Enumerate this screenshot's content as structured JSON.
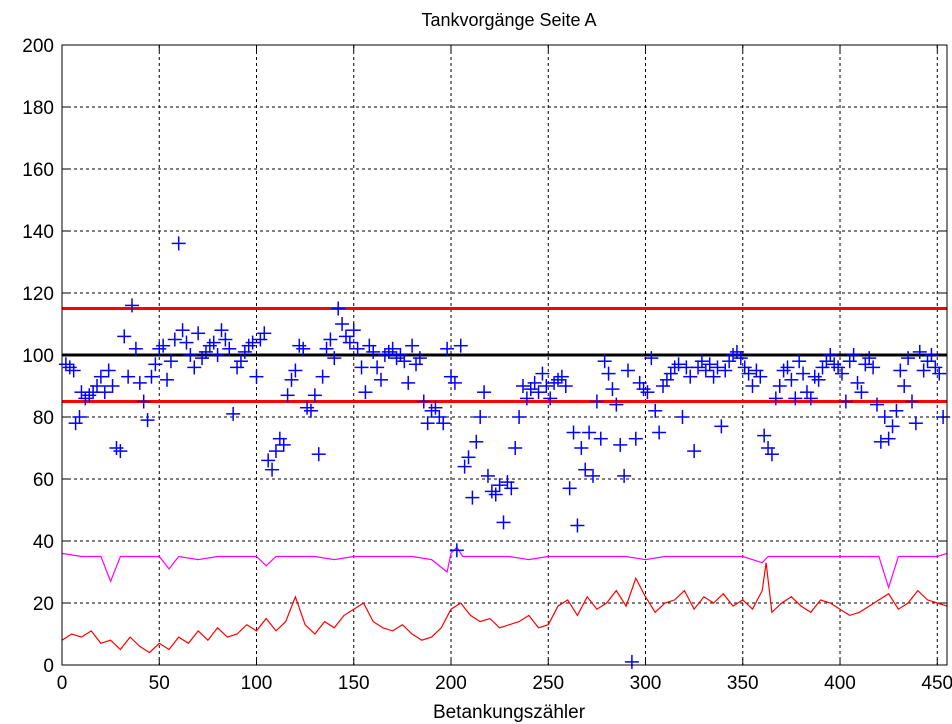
{
  "chart_data": {
    "type": "scatter",
    "title": "Tankvorgänge Seite A",
    "xlabel": "Betankungszähler",
    "ylabel": "",
    "xlim": [
      0,
      455
    ],
    "ylim": [
      0,
      200
    ],
    "xticks": [
      0,
      50,
      100,
      150,
      200,
      250,
      300,
      350,
      400,
      450
    ],
    "yticks": [
      0,
      20,
      40,
      60,
      80,
      100,
      120,
      140,
      160,
      180,
      200
    ],
    "grid": true,
    "colors": {
      "scatter": "#0000ff",
      "reference": "#000000",
      "limits": "#ff0000",
      "magenta_series": "#ff00ff",
      "red_series": "#ff0000"
    },
    "reference_lines": [
      {
        "y": 115,
        "color": "#ff0000"
      },
      {
        "y": 100,
        "color": "#000000"
      },
      {
        "y": 85,
        "color": "#ff0000"
      }
    ],
    "scatter_points": [
      [
        2,
        97
      ],
      [
        4,
        96
      ],
      [
        6,
        95
      ],
      [
        7,
        78
      ],
      [
        9,
        80
      ],
      [
        10,
        88
      ],
      [
        12,
        86
      ],
      [
        14,
        87
      ],
      [
        16,
        88
      ],
      [
        18,
        90
      ],
      [
        20,
        93
      ],
      [
        22,
        88
      ],
      [
        24,
        95
      ],
      [
        26,
        90
      ],
      [
        28,
        70
      ],
      [
        30,
        69
      ],
      [
        32,
        106
      ],
      [
        34,
        93
      ],
      [
        36,
        116
      ],
      [
        38,
        102
      ],
      [
        40,
        91
      ],
      [
        42,
        85
      ],
      [
        44,
        79
      ],
      [
        46,
        93
      ],
      [
        48,
        97
      ],
      [
        50,
        102
      ],
      [
        52,
        103
      ],
      [
        54,
        92
      ],
      [
        56,
        98
      ],
      [
        58,
        105
      ],
      [
        60,
        136
      ],
      [
        62,
        108
      ],
      [
        64,
        104
      ],
      [
        66,
        100
      ],
      [
        68,
        96
      ],
      [
        70,
        107
      ],
      [
        72,
        99
      ],
      [
        74,
        101
      ],
      [
        76,
        103
      ],
      [
        78,
        104
      ],
      [
        80,
        100
      ],
      [
        82,
        108
      ],
      [
        84,
        105
      ],
      [
        86,
        102
      ],
      [
        88,
        81
      ],
      [
        90,
        96
      ],
      [
        92,
        98
      ],
      [
        94,
        101
      ],
      [
        96,
        103
      ],
      [
        98,
        104
      ],
      [
        100,
        93
      ],
      [
        102,
        105
      ],
      [
        104,
        107
      ],
      [
        106,
        66
      ],
      [
        108,
        63
      ],
      [
        110,
        69
      ],
      [
        112,
        73
      ],
      [
        114,
        71
      ],
      [
        116,
        87
      ],
      [
        118,
        92
      ],
      [
        120,
        95
      ],
      [
        122,
        103
      ],
      [
        124,
        102
      ],
      [
        126,
        83
      ],
      [
        128,
        82
      ],
      [
        130,
        87
      ],
      [
        132,
        68
      ],
      [
        134,
        93
      ],
      [
        136,
        102
      ],
      [
        138,
        105
      ],
      [
        140,
        99
      ],
      [
        142,
        115
      ],
      [
        144,
        110
      ],
      [
        146,
        106
      ],
      [
        148,
        104
      ],
      [
        150,
        108
      ],
      [
        152,
        102
      ],
      [
        154,
        96
      ],
      [
        156,
        88
      ],
      [
        158,
        103
      ],
      [
        160,
        101
      ],
      [
        162,
        96
      ],
      [
        164,
        92
      ],
      [
        166,
        100
      ],
      [
        168,
        101
      ],
      [
        170,
        102
      ],
      [
        172,
        99
      ],
      [
        174,
        100
      ],
      [
        176,
        98
      ],
      [
        178,
        91
      ],
      [
        180,
        103
      ],
      [
        182,
        97
      ],
      [
        184,
        99
      ],
      [
        186,
        85
      ],
      [
        188,
        78
      ],
      [
        190,
        82
      ],
      [
        192,
        83
      ],
      [
        194,
        80
      ],
      [
        196,
        78
      ],
      [
        198,
        102
      ],
      [
        200,
        93
      ],
      [
        202,
        91
      ],
      [
        203,
        37
      ],
      [
        205,
        103
      ],
      [
        207,
        64
      ],
      [
        209,
        67
      ],
      [
        211,
        54
      ],
      [
        213,
        72
      ],
      [
        215,
        80
      ],
      [
        217,
        88
      ],
      [
        219,
        61
      ],
      [
        221,
        56
      ],
      [
        223,
        55
      ],
      [
        225,
        58
      ],
      [
        227,
        46
      ],
      [
        229,
        59
      ],
      [
        231,
        57
      ],
      [
        233,
        70
      ],
      [
        235,
        80
      ],
      [
        237,
        90
      ],
      [
        239,
        86
      ],
      [
        241,
        89
      ],
      [
        243,
        91
      ],
      [
        245,
        88
      ],
      [
        247,
        94
      ],
      [
        249,
        90
      ],
      [
        251,
        86
      ],
      [
        253,
        91
      ],
      [
        255,
        92
      ],
      [
        257,
        93
      ],
      [
        259,
        90
      ],
      [
        261,
        57
      ],
      [
        263,
        75
      ],
      [
        265,
        45
      ],
      [
        267,
        70
      ],
      [
        269,
        63
      ],
      [
        271,
        75
      ],
      [
        273,
        61
      ],
      [
        275,
        85
      ],
      [
        277,
        73
      ],
      [
        279,
        98
      ],
      [
        281,
        94
      ],
      [
        283,
        89
      ],
      [
        285,
        84
      ],
      [
        287,
        71
      ],
      [
        289,
        61
      ],
      [
        291,
        95
      ],
      [
        293,
        1
      ],
      [
        295,
        73
      ],
      [
        297,
        91
      ],
      [
        299,
        89
      ],
      [
        301,
        88
      ],
      [
        303,
        99
      ],
      [
        305,
        82
      ],
      [
        307,
        75
      ],
      [
        309,
        90
      ],
      [
        311,
        92
      ],
      [
        313,
        94
      ],
      [
        315,
        96
      ],
      [
        317,
        97
      ],
      [
        319,
        80
      ],
      [
        321,
        96
      ],
      [
        323,
        93
      ],
      [
        325,
        69
      ],
      [
        327,
        96
      ],
      [
        329,
        98
      ],
      [
        331,
        95
      ],
      [
        333,
        97
      ],
      [
        335,
        93
      ],
      [
        337,
        96
      ],
      [
        339,
        77
      ],
      [
        341,
        95
      ],
      [
        343,
        98
      ],
      [
        345,
        100
      ],
      [
        347,
        101
      ],
      [
        349,
        99
      ],
      [
        351,
        96
      ],
      [
        353,
        94
      ],
      [
        355,
        90
      ],
      [
        357,
        95
      ],
      [
        359,
        93
      ],
      [
        361,
        74
      ],
      [
        363,
        70
      ],
      [
        365,
        68
      ],
      [
        367,
        86
      ],
      [
        369,
        90
      ],
      [
        371,
        95
      ],
      [
        373,
        96
      ],
      [
        375,
        92
      ],
      [
        377,
        86
      ],
      [
        379,
        98
      ],
      [
        381,
        94
      ],
      [
        383,
        88
      ],
      [
        385,
        86
      ],
      [
        387,
        93
      ],
      [
        389,
        92
      ],
      [
        391,
        96
      ],
      [
        393,
        98
      ],
      [
        395,
        100
      ],
      [
        397,
        97
      ],
      [
        399,
        96
      ],
      [
        401,
        94
      ],
      [
        403,
        85
      ],
      [
        405,
        98
      ],
      [
        407,
        100
      ],
      [
        409,
        91
      ],
      [
        411,
        88
      ],
      [
        413,
        97
      ],
      [
        415,
        99
      ],
      [
        417,
        96
      ],
      [
        419,
        84
      ],
      [
        421,
        72
      ],
      [
        423,
        80
      ],
      [
        425,
        73
      ],
      [
        427,
        77
      ],
      [
        429,
        82
      ],
      [
        431,
        95
      ],
      [
        433,
        90
      ],
      [
        435,
        99
      ],
      [
        437,
        85
      ],
      [
        439,
        78
      ],
      [
        441,
        101
      ],
      [
        443,
        95
      ],
      [
        445,
        98
      ],
      [
        447,
        100
      ],
      [
        449,
        96
      ],
      [
        451,
        94
      ],
      [
        453,
        80
      ]
    ],
    "magenta_series": [
      [
        0,
        36
      ],
      [
        10,
        35
      ],
      [
        20,
        35
      ],
      [
        25,
        27
      ],
      [
        30,
        35
      ],
      [
        40,
        35
      ],
      [
        50,
        35
      ],
      [
        55,
        31
      ],
      [
        60,
        35
      ],
      [
        70,
        34
      ],
      [
        80,
        35
      ],
      [
        90,
        35
      ],
      [
        100,
        35
      ],
      [
        105,
        32
      ],
      [
        110,
        35
      ],
      [
        120,
        35
      ],
      [
        130,
        35
      ],
      [
        140,
        34
      ],
      [
        150,
        35
      ],
      [
        160,
        35
      ],
      [
        170,
        35
      ],
      [
        180,
        35
      ],
      [
        190,
        34
      ],
      [
        198,
        30
      ],
      [
        200,
        36
      ],
      [
        203,
        38
      ],
      [
        206,
        35
      ],
      [
        210,
        35
      ],
      [
        220,
        35
      ],
      [
        230,
        35
      ],
      [
        240,
        34
      ],
      [
        250,
        35
      ],
      [
        260,
        35
      ],
      [
        270,
        35
      ],
      [
        280,
        35
      ],
      [
        290,
        35
      ],
      [
        300,
        34
      ],
      [
        310,
        35
      ],
      [
        320,
        35
      ],
      [
        330,
        35
      ],
      [
        340,
        35
      ],
      [
        350,
        35
      ],
      [
        360,
        33
      ],
      [
        363,
        35
      ],
      [
        370,
        35
      ],
      [
        380,
        35
      ],
      [
        390,
        35
      ],
      [
        400,
        35
      ],
      [
        410,
        35
      ],
      [
        420,
        35
      ],
      [
        425,
        25
      ],
      [
        430,
        35
      ],
      [
        440,
        35
      ],
      [
        450,
        35
      ],
      [
        455,
        36
      ]
    ],
    "red_series": [
      [
        0,
        8
      ],
      [
        5,
        10
      ],
      [
        10,
        9
      ],
      [
        15,
        11
      ],
      [
        20,
        7
      ],
      [
        25,
        8
      ],
      [
        30,
        5
      ],
      [
        35,
        9
      ],
      [
        40,
        6
      ],
      [
        45,
        4
      ],
      [
        50,
        7
      ],
      [
        55,
        5
      ],
      [
        60,
        9
      ],
      [
        65,
        7
      ],
      [
        70,
        11
      ],
      [
        75,
        8
      ],
      [
        80,
        12
      ],
      [
        85,
        9
      ],
      [
        90,
        10
      ],
      [
        95,
        13
      ],
      [
        100,
        11
      ],
      [
        105,
        15
      ],
      [
        110,
        11
      ],
      [
        115,
        14
      ],
      [
        120,
        22
      ],
      [
        125,
        13
      ],
      [
        130,
        10
      ],
      [
        135,
        14
      ],
      [
        140,
        12
      ],
      [
        145,
        16
      ],
      [
        150,
        18
      ],
      [
        155,
        20
      ],
      [
        160,
        14
      ],
      [
        165,
        12
      ],
      [
        170,
        11
      ],
      [
        175,
        13
      ],
      [
        180,
        10
      ],
      [
        185,
        8
      ],
      [
        190,
        9
      ],
      [
        195,
        12
      ],
      [
        200,
        18
      ],
      [
        205,
        20
      ],
      [
        210,
        16
      ],
      [
        215,
        14
      ],
      [
        220,
        15
      ],
      [
        225,
        12
      ],
      [
        230,
        13
      ],
      [
        235,
        14
      ],
      [
        240,
        16
      ],
      [
        245,
        12
      ],
      [
        250,
        13
      ],
      [
        255,
        19
      ],
      [
        260,
        21
      ],
      [
        265,
        16
      ],
      [
        270,
        22
      ],
      [
        275,
        18
      ],
      [
        280,
        20
      ],
      [
        285,
        24
      ],
      [
        290,
        19
      ],
      [
        295,
        28
      ],
      [
        300,
        22
      ],
      [
        305,
        17
      ],
      [
        310,
        20
      ],
      [
        315,
        21
      ],
      [
        320,
        24
      ],
      [
        325,
        18
      ],
      [
        330,
        22
      ],
      [
        335,
        20
      ],
      [
        340,
        23
      ],
      [
        345,
        19
      ],
      [
        350,
        21
      ],
      [
        355,
        18
      ],
      [
        360,
        24
      ],
      [
        362,
        33
      ],
      [
        365,
        17
      ],
      [
        370,
        20
      ],
      [
        375,
        22
      ],
      [
        380,
        19
      ],
      [
        385,
        17
      ],
      [
        390,
        21
      ],
      [
        395,
        20
      ],
      [
        400,
        18
      ],
      [
        405,
        16
      ],
      [
        410,
        17
      ],
      [
        415,
        19
      ],
      [
        420,
        21
      ],
      [
        425,
        23
      ],
      [
        430,
        18
      ],
      [
        435,
        20
      ],
      [
        440,
        24
      ],
      [
        445,
        21
      ],
      [
        450,
        20
      ],
      [
        455,
        19
      ]
    ]
  }
}
